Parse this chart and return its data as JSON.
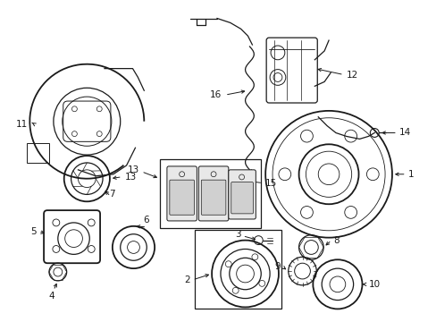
{
  "background_color": "#ffffff",
  "line_color": "#1a1a1a",
  "label_fontsize": 7.5,
  "figsize": [
    4.89,
    3.6
  ],
  "dpi": 100
}
